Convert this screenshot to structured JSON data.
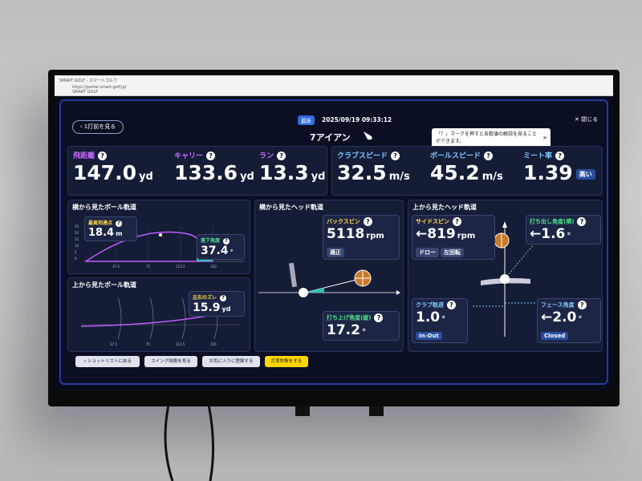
{
  "browser": {
    "tab_title": "SMART GOLF - スマートゴルフ",
    "url": "https://portal.smart-golf.jp/",
    "site": "SMART GOLF"
  },
  "help_icon": "?",
  "header": {
    "back": "‹ 1打前を見る",
    "badge": "最新",
    "datetime": "2025/09/19 09:33:12",
    "club": "7アイアン",
    "close": "✕ 閉じる",
    "tooltip": "「？」マークを押すと各数値の解説を見ることができます。"
  },
  "stats": [
    {
      "label": "飛距離",
      "value": "147.0",
      "unit": "yd"
    },
    {
      "label": "キャリー",
      "value": "133.6",
      "unit": "yd"
    },
    {
      "label": "ラン",
      "value": "13.3",
      "unit": "yd"
    },
    {
      "label": "クラブスピード",
      "value": "32.5",
      "unit": "m/s"
    },
    {
      "label": "ボールスピード",
      "value": "45.2",
      "unit": "m/s"
    },
    {
      "label": "ミート率",
      "value": "1.39",
      "badge": "高い"
    }
  ],
  "ball_side": {
    "title": "横から見たボール軌道",
    "apex_label": "最高到達点",
    "apex": "18.4",
    "apex_unit": "m",
    "land_label": "落下角度",
    "land": "37.4",
    "land_unit": "°",
    "xticks": [
      "37.5",
      "75",
      "112.5",
      "150"
    ],
    "yticks": [
      "25",
      "20",
      "15",
      "10",
      "5",
      "0"
    ]
  },
  "ball_top": {
    "title": "上から見たボール軌道",
    "dev_label": "左右のズレ",
    "dev": "15.9",
    "dev_unit": "yd",
    "xticks": [
      "37.5",
      "75",
      "112.5",
      "150"
    ]
  },
  "head_side": {
    "title": "横から見たヘッド軌道",
    "spin_label": "バックスピン",
    "spin": "5118",
    "spin_unit": "rpm",
    "spin_badge": "適正",
    "launch_label": "打ち上げ角度(縦)",
    "launch": "17.2",
    "launch_unit": "°"
  },
  "head_top": {
    "title": "上から見たヘッド軌道",
    "side_label": "サイドスピン",
    "side": "←819",
    "side_unit": "rpm",
    "side_badges": [
      "ドロー",
      "左回転"
    ],
    "hlaunch_label": "打ち出し角度(横)",
    "hlaunch": "←1.6",
    "hlaunch_unit": "°",
    "path_label": "クラブ軌道",
    "path": "1.0",
    "path_unit": "°",
    "path_badge": "In-Out",
    "face_label": "フェース角度",
    "face": "←2.0",
    "face_unit": "°",
    "face_badge": "Closed"
  },
  "buttons": [
    "« ショットリストに戻る",
    "スイング映像を見る",
    "お気に入りに登録する",
    "打率診断をする"
  ]
}
